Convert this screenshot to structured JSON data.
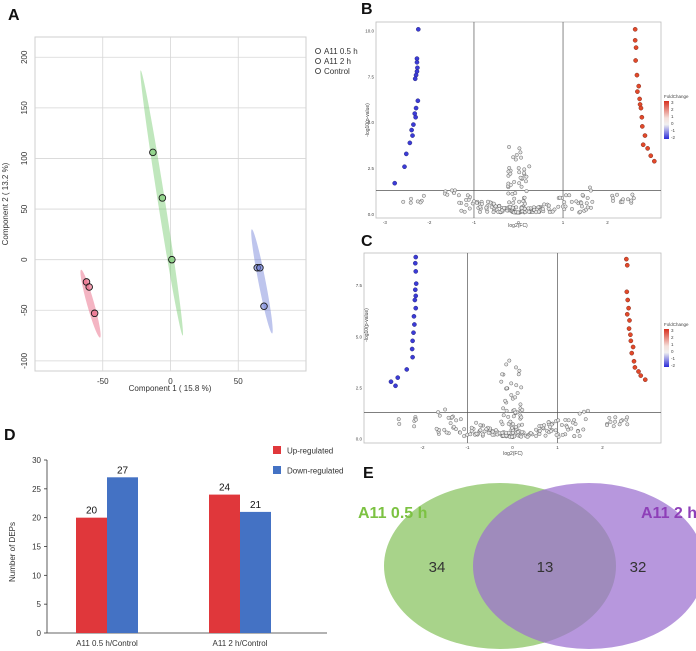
{
  "panels": {
    "a": "A",
    "b": "B",
    "c": "C",
    "d": "D",
    "e": "E"
  },
  "chart_data": [
    {
      "id": "pca",
      "type": "scatter",
      "title": "",
      "xlabel": "Component 1 ( 15.8 %)",
      "ylabel": "Component 2 ( 13.2 %)",
      "xlim": [
        -100,
        100
      ],
      "ylim": [
        -110,
        220
      ],
      "xticks": [
        -50,
        0,
        50
      ],
      "yticks": [
        -100,
        -50,
        0,
        50,
        100,
        150,
        200
      ],
      "grid": true,
      "legend_position": "top-right",
      "series": [
        {
          "name": "A11 0.5 h",
          "color": "#e65a7a",
          "points": [
            [
              -62,
              -22
            ],
            [
              -60,
              -27
            ],
            [
              -56,
              -53
            ]
          ],
          "ellipse": {
            "from": [
              -66,
              -10
            ],
            "to": [
              -52,
              -77
            ]
          }
        },
        {
          "name": "A11 2 h",
          "color": "#74c96c",
          "points": [
            [
              -13,
              106
            ],
            [
              -6,
              61
            ],
            [
              1,
              0
            ]
          ],
          "ellipse": {
            "from": [
              -22,
              187
            ],
            "to": [
              9,
              -75
            ]
          }
        },
        {
          "name": "Control",
          "color": "#6f7fd6",
          "points": [
            [
              64,
              -8
            ],
            [
              66,
              -8
            ],
            [
              69,
              -46
            ]
          ],
          "ellipse": {
            "from": [
              60,
              30
            ],
            "to": [
              75,
              -73
            ]
          }
        }
      ]
    },
    {
      "id": "volcano-b",
      "type": "scatter",
      "xlabel": "log2(FC)",
      "ylabel": "-log10(p-value)",
      "xlim": [
        -3.2,
        3.2
      ],
      "ylim": [
        -0.2,
        10.5
      ],
      "xticks": [
        -3,
        -2,
        -1,
        0,
        1,
        2
      ],
      "yticks": [
        0.0,
        2.5,
        5.0,
        7.5,
        10.0
      ],
      "vlines": [
        -1,
        1
      ],
      "hline": 1.3,
      "legend_title": "FoldChange",
      "colorbar_ticks": [
        3,
        2,
        1,
        0,
        -1,
        -2
      ],
      "down_points": [
        [
          -2.25,
          10.1
        ],
        [
          -2.28,
          8.5
        ],
        [
          -2.28,
          8.3
        ],
        [
          -2.27,
          8.0
        ],
        [
          -2.28,
          7.8
        ],
        [
          -2.3,
          7.6
        ],
        [
          -2.32,
          7.4
        ],
        [
          -2.26,
          6.2
        ],
        [
          -2.3,
          5.8
        ],
        [
          -2.33,
          5.5
        ],
        [
          -2.31,
          5.3
        ],
        [
          -2.36,
          4.9
        ],
        [
          -2.4,
          4.6
        ],
        [
          -2.38,
          4.3
        ],
        [
          -2.44,
          3.9
        ],
        [
          -2.52,
          3.3
        ],
        [
          -2.56,
          2.6
        ],
        [
          -2.78,
          1.7
        ]
      ],
      "up_points": [
        [
          2.62,
          10.1
        ],
        [
          2.62,
          9.5
        ],
        [
          2.64,
          9.1
        ],
        [
          2.63,
          8.4
        ],
        [
          2.66,
          7.6
        ],
        [
          2.7,
          7.0
        ],
        [
          2.67,
          6.7
        ],
        [
          2.72,
          6.3
        ],
        [
          2.73,
          6.0
        ],
        [
          2.75,
          5.8
        ],
        [
          2.77,
          5.3
        ],
        [
          2.78,
          4.8
        ],
        [
          2.84,
          4.3
        ],
        [
          2.8,
          3.8
        ],
        [
          2.9,
          3.6
        ],
        [
          2.97,
          3.2
        ],
        [
          3.05,
          2.9
        ]
      ]
    },
    {
      "id": "volcano-c",
      "type": "scatter",
      "xlabel": "log2(FC)",
      "ylabel": "-log10(p-value)",
      "xlim": [
        -3.3,
        3.3
      ],
      "ylim": [
        -0.2,
        9.1
      ],
      "xticks": [
        -2,
        -1,
        0,
        1,
        2
      ],
      "yticks": [
        0.0,
        2.5,
        5.0,
        7.5
      ],
      "vlines": [
        -1,
        1
      ],
      "hline": 1.3,
      "legend_title": "FoldChange",
      "colorbar_ticks": [
        3,
        2,
        1,
        0,
        -1,
        -2
      ],
      "down_points": [
        [
          -2.15,
          8.9
        ],
        [
          -2.16,
          8.6
        ],
        [
          -2.15,
          8.2
        ],
        [
          -2.14,
          7.6
        ],
        [
          -2.16,
          7.3
        ],
        [
          -2.15,
          7.0
        ],
        [
          -2.17,
          6.8
        ],
        [
          -2.15,
          6.4
        ],
        [
          -2.19,
          6.0
        ],
        [
          -2.18,
          5.6
        ],
        [
          -2.2,
          5.2
        ],
        [
          -2.22,
          4.8
        ],
        [
          -2.23,
          4.4
        ],
        [
          -2.22,
          4.0
        ],
        [
          -2.35,
          3.4
        ],
        [
          -2.55,
          3.0
        ],
        [
          -2.6,
          2.6
        ],
        [
          -2.7,
          2.8
        ]
      ],
      "up_points": [
        [
          2.53,
          8.8
        ],
        [
          2.55,
          8.5
        ],
        [
          2.54,
          7.2
        ],
        [
          2.56,
          6.8
        ],
        [
          2.58,
          6.4
        ],
        [
          2.55,
          6.1
        ],
        [
          2.6,
          5.8
        ],
        [
          2.59,
          5.4
        ],
        [
          2.62,
          5.1
        ],
        [
          2.63,
          4.8
        ],
        [
          2.68,
          4.5
        ],
        [
          2.65,
          4.2
        ],
        [
          2.7,
          3.8
        ],
        [
          2.72,
          3.5
        ],
        [
          2.8,
          3.3
        ],
        [
          2.85,
          3.1
        ],
        [
          2.95,
          2.9
        ]
      ]
    },
    {
      "id": "deps-bar",
      "type": "bar",
      "title": "",
      "xlabel": "",
      "ylabel": "Number of DEPs",
      "ylim": [
        0,
        30
      ],
      "yticks": [
        0,
        5,
        10,
        15,
        20,
        25,
        30
      ],
      "categories": [
        "A11 0.5 h/Control",
        "A11 2 h/Control"
      ],
      "series": [
        {
          "name": "Up-regulated",
          "color": "#e0373b",
          "values": [
            20,
            24
          ]
        },
        {
          "name": "Down-regulated",
          "color": "#4472c4",
          "values": [
            27,
            21
          ]
        }
      ],
      "legend_position": "top-right"
    },
    {
      "id": "venn",
      "type": "venn",
      "sets": [
        {
          "name": "A11 0.5 h",
          "only": 34,
          "color": "#a8d38a",
          "label_color": "#7cc242"
        },
        {
          "name": "A11 2 h",
          "only": 32,
          "color": "#ad7fdb",
          "label_color": "#8e3fb8"
        }
      ],
      "intersection": 13
    }
  ]
}
